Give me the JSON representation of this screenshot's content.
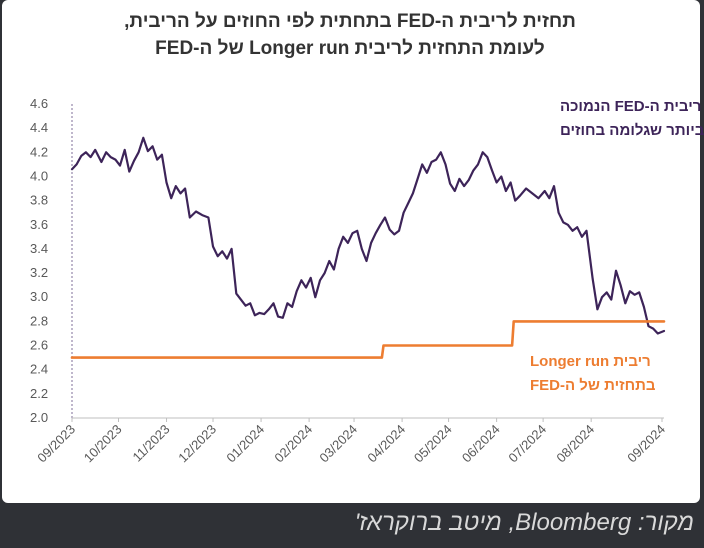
{
  "title": {
    "line1": "תחזית לריבית ה-FED בתחתית לפי החוזים על הריבית,",
    "line2": "לעומת התחזית לריבית Longer run של ה-FED"
  },
  "source": "מקור: Bloomberg, מיטב ברוקראז'",
  "colors": {
    "fed_funds_implied": "#3d2459",
    "longer_run": "#ed7d31",
    "axis": "#bfbfbf",
    "background": "#ffffff",
    "footer": "#2f3136"
  },
  "chart_data": {
    "type": "line",
    "x_labels": [
      "09/2023",
      "10/2023",
      "11/2023",
      "12/2023",
      "01/2024",
      "02/2024",
      "03/2024",
      "04/2024",
      "05/2024",
      "06/2024",
      "07/2024",
      "08/2024",
      "09/2024"
    ],
    "ylim": [
      2.0,
      4.6
    ],
    "yticks": [
      "4.6",
      "4.4",
      "4.2",
      "4.0",
      "3.8",
      "3.6",
      "3.4",
      "3.2",
      "3.0",
      "2.8",
      "2.6",
      "2.4",
      "2.2",
      "2.0"
    ],
    "grid": false,
    "annotations": [
      {
        "series": "fed_funds_implied",
        "line1": "ריבית ה-FED הנמוכה",
        "line2": "ביותר שגלומה בחוזים"
      },
      {
        "series": "longer_run",
        "line1": "ריבית Longer run",
        "line2": "בתחזית של ה-FED"
      }
    ],
    "series": [
      {
        "key": "fed_funds_implied",
        "points": [
          [
            "2023-09-01",
            4.06
          ],
          [
            "2023-09-04",
            4.1
          ],
          [
            "2023-09-07",
            4.17
          ],
          [
            "2023-09-10",
            4.2
          ],
          [
            "2023-09-13",
            4.16
          ],
          [
            "2023-09-16",
            4.22
          ],
          [
            "2023-09-20",
            4.12
          ],
          [
            "2023-09-23",
            4.2
          ],
          [
            "2023-09-26",
            4.16
          ],
          [
            "2023-09-29",
            4.14
          ],
          [
            "2023-10-02",
            4.09
          ],
          [
            "2023-10-05",
            4.22
          ],
          [
            "2023-10-08",
            4.04
          ],
          [
            "2023-10-11",
            4.13
          ],
          [
            "2023-10-14",
            4.2
          ],
          [
            "2023-10-17",
            4.32
          ],
          [
            "2023-10-20",
            4.21
          ],
          [
            "2023-10-23",
            4.25
          ],
          [
            "2023-10-26",
            4.14
          ],
          [
            "2023-10-29",
            4.18
          ],
          [
            "2023-11-01",
            3.95
          ],
          [
            "2023-11-04",
            3.82
          ],
          [
            "2023-11-07",
            3.92
          ],
          [
            "2023-11-10",
            3.86
          ],
          [
            "2023-11-13",
            3.9
          ],
          [
            "2023-11-16",
            3.66
          ],
          [
            "2023-11-20",
            3.71
          ],
          [
            "2023-11-24",
            3.68
          ],
          [
            "2023-11-28",
            3.66
          ],
          [
            "2023-12-01",
            3.42
          ],
          [
            "2023-12-04",
            3.34
          ],
          [
            "2023-12-07",
            3.38
          ],
          [
            "2023-12-10",
            3.32
          ],
          [
            "2023-12-13",
            3.4
          ],
          [
            "2023-12-16",
            3.03
          ],
          [
            "2023-12-19",
            2.98
          ],
          [
            "2023-12-22",
            2.93
          ],
          [
            "2023-12-25",
            2.95
          ],
          [
            "2023-12-28",
            2.85
          ],
          [
            "2023-12-31",
            2.87
          ],
          [
            "2024-01-03",
            2.86
          ],
          [
            "2024-01-06",
            2.9
          ],
          [
            "2024-01-09",
            2.95
          ],
          [
            "2024-01-12",
            2.84
          ],
          [
            "2024-01-15",
            2.83
          ],
          [
            "2024-01-18",
            2.95
          ],
          [
            "2024-01-21",
            2.92
          ],
          [
            "2024-01-24",
            3.05
          ],
          [
            "2024-01-27",
            3.14
          ],
          [
            "2024-01-30",
            3.08
          ],
          [
            "2024-02-02",
            3.16
          ],
          [
            "2024-02-05",
            3.0
          ],
          [
            "2024-02-08",
            3.14
          ],
          [
            "2024-02-11",
            3.2
          ],
          [
            "2024-02-14",
            3.3
          ],
          [
            "2024-02-17",
            3.23
          ],
          [
            "2024-02-20",
            3.4
          ],
          [
            "2024-02-23",
            3.5
          ],
          [
            "2024-02-26",
            3.45
          ],
          [
            "2024-02-29",
            3.53
          ],
          [
            "2024-03-03",
            3.55
          ],
          [
            "2024-03-06",
            3.4
          ],
          [
            "2024-03-09",
            3.3
          ],
          [
            "2024-03-12",
            3.45
          ],
          [
            "2024-03-15",
            3.53
          ],
          [
            "2024-03-18",
            3.6
          ],
          [
            "2024-03-21",
            3.66
          ],
          [
            "2024-03-24",
            3.56
          ],
          [
            "2024-03-27",
            3.52
          ],
          [
            "2024-03-30",
            3.55
          ],
          [
            "2024-04-02",
            3.7
          ],
          [
            "2024-04-05",
            3.78
          ],
          [
            "2024-04-08",
            3.86
          ],
          [
            "2024-04-11",
            3.98
          ],
          [
            "2024-04-14",
            4.1
          ],
          [
            "2024-04-17",
            4.03
          ],
          [
            "2024-04-20",
            4.12
          ],
          [
            "2024-04-23",
            4.14
          ],
          [
            "2024-04-26",
            4.2
          ],
          [
            "2024-04-29",
            4.1
          ],
          [
            "2024-05-02",
            3.94
          ],
          [
            "2024-05-05",
            3.88
          ],
          [
            "2024-05-08",
            3.98
          ],
          [
            "2024-05-11",
            3.92
          ],
          [
            "2024-05-14",
            3.97
          ],
          [
            "2024-05-17",
            4.05
          ],
          [
            "2024-05-20",
            4.1
          ],
          [
            "2024-05-23",
            4.2
          ],
          [
            "2024-05-26",
            4.16
          ],
          [
            "2024-05-29",
            4.05
          ],
          [
            "2024-06-01",
            3.95
          ],
          [
            "2024-06-04",
            4.0
          ],
          [
            "2024-06-07",
            3.88
          ],
          [
            "2024-06-10",
            3.95
          ],
          [
            "2024-06-13",
            3.8
          ],
          [
            "2024-06-16",
            3.84
          ],
          [
            "2024-06-20",
            3.9
          ],
          [
            "2024-06-24",
            3.86
          ],
          [
            "2024-06-28",
            3.82
          ],
          [
            "2024-07-02",
            3.88
          ],
          [
            "2024-07-05",
            3.82
          ],
          [
            "2024-07-08",
            3.92
          ],
          [
            "2024-07-11",
            3.7
          ],
          [
            "2024-07-14",
            3.62
          ],
          [
            "2024-07-17",
            3.6
          ],
          [
            "2024-07-20",
            3.55
          ],
          [
            "2024-07-23",
            3.58
          ],
          [
            "2024-07-26",
            3.5
          ],
          [
            "2024-07-29",
            3.55
          ],
          [
            "2024-08-02",
            3.15
          ],
          [
            "2024-08-05",
            2.9
          ],
          [
            "2024-08-08",
            3.0
          ],
          [
            "2024-08-11",
            3.04
          ],
          [
            "2024-08-14",
            2.98
          ],
          [
            "2024-08-17",
            3.22
          ],
          [
            "2024-08-20",
            3.1
          ],
          [
            "2024-08-23",
            2.95
          ],
          [
            "2024-08-26",
            3.05
          ],
          [
            "2024-08-29",
            3.02
          ],
          [
            "2024-09-01",
            3.04
          ],
          [
            "2024-09-04",
            2.92
          ],
          [
            "2024-09-07",
            2.76
          ],
          [
            "2024-09-10",
            2.74
          ],
          [
            "2024-09-13",
            2.7
          ],
          [
            "2024-09-17",
            2.72
          ]
        ]
      },
      {
        "key": "longer_run",
        "points": [
          [
            "2023-09-01",
            2.5
          ],
          [
            "2024-03-19",
            2.5
          ],
          [
            "2024-03-20",
            2.6
          ],
          [
            "2024-06-11",
            2.6
          ],
          [
            "2024-06-12",
            2.8
          ],
          [
            "2024-09-17",
            2.8
          ]
        ]
      }
    ]
  }
}
